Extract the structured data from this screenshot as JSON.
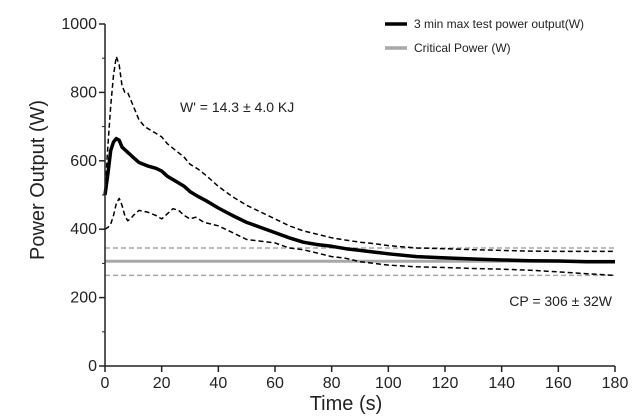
{
  "chart_data": {
    "type": "line",
    "title": "",
    "xlabel": "Time (s)",
    "ylabel": "Power Output (W)",
    "xlim": [
      0,
      180
    ],
    "ylim": [
      0,
      1000
    ],
    "x_ticks": [
      "0",
      "20",
      "40",
      "60",
      "80",
      "100",
      "120",
      "140",
      "160",
      "180"
    ],
    "y_ticks": [
      "0",
      "200",
      "400",
      "600",
      "800",
      "1000"
    ],
    "grid": false,
    "legend": {
      "placement": "top-right",
      "entries": [
        {
          "label": "3 min max test power output(W)",
          "color": "#000000"
        },
        {
          "label": "Critical Power (W)",
          "color": "#a8a8a8"
        }
      ]
    },
    "annotations": {
      "w_prime": "W' = 14.3 ± 4.0 KJ",
      "cp": "CP = 306 ± 32W"
    },
    "series": [
      {
        "name": "3 min max test power output(W)",
        "color": "#000000",
        "x": [
          0,
          1,
          2,
          3,
          4,
          5,
          6,
          8,
          10,
          12,
          15,
          18,
          20,
          22,
          25,
          28,
          30,
          33,
          36,
          40,
          45,
          50,
          55,
          60,
          65,
          70,
          75,
          80,
          85,
          90,
          95,
          100,
          110,
          120,
          130,
          140,
          150,
          160,
          170,
          180
        ],
        "values": [
          500,
          560,
          630,
          655,
          665,
          660,
          640,
          625,
          610,
          595,
          585,
          578,
          570,
          555,
          540,
          525,
          510,
          495,
          482,
          462,
          440,
          420,
          405,
          390,
          375,
          362,
          355,
          350,
          343,
          338,
          333,
          328,
          320,
          316,
          313,
          310,
          308,
          307,
          305,
          305
        ]
      },
      {
        "name": "",
        "color": "#000000",
        "dash": true,
        "x": [
          0,
          1,
          2,
          3,
          4,
          5,
          6,
          7,
          8,
          10,
          12,
          14,
          16,
          18,
          20,
          22,
          25,
          28,
          30,
          33,
          36,
          40,
          45,
          50,
          55,
          60,
          65,
          70,
          75,
          80,
          85,
          90,
          95,
          100,
          110,
          120,
          130,
          140,
          150,
          160,
          170,
          180
        ],
        "values": [
          510,
          640,
          760,
          850,
          905,
          880,
          820,
          800,
          800,
          760,
          720,
          700,
          690,
          680,
          670,
          650,
          630,
          610,
          590,
          575,
          555,
          525,
          495,
          470,
          450,
          430,
          410,
          395,
          385,
          375,
          368,
          362,
          358,
          352,
          345,
          343,
          340,
          338,
          336,
          335,
          335,
          335
        ]
      },
      {
        "name": "",
        "color": "#000000",
        "dash": true,
        "x": [
          0,
          1,
          2,
          3,
          4,
          5,
          6,
          7,
          8,
          9,
          10,
          12,
          15,
          18,
          20,
          22,
          24,
          26,
          28,
          30,
          32,
          35,
          40,
          45,
          50,
          55,
          60,
          65,
          70,
          75,
          80,
          85,
          90,
          95,
          100,
          110,
          120,
          130,
          140,
          150,
          160,
          170,
          180
        ],
        "values": [
          400,
          405,
          415,
          440,
          475,
          490,
          470,
          440,
          425,
          430,
          440,
          455,
          450,
          440,
          430,
          445,
          460,
          455,
          440,
          430,
          435,
          420,
          410,
          390,
          370,
          365,
          360,
          345,
          340,
          330,
          320,
          315,
          305,
          300,
          295,
          290,
          288,
          285,
          283,
          280,
          275,
          270,
          265
        ]
      },
      {
        "name": "Critical Power (W)",
        "color": "#a8a8a8",
        "x": [
          0,
          180
        ],
        "values": [
          306,
          306
        ]
      },
      {
        "name": "",
        "color": "#a8a8a8",
        "dash": true,
        "x": [
          0,
          180
        ],
        "values": [
          345,
          345
        ]
      },
      {
        "name": "",
        "color": "#a8a8a8",
        "dash": true,
        "x": [
          0,
          180
        ],
        "values": [
          265,
          265
        ]
      }
    ]
  }
}
